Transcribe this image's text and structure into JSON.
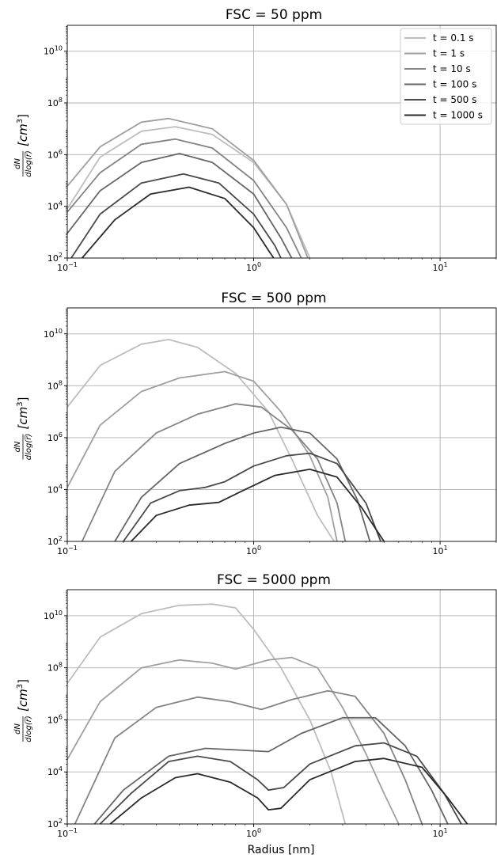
{
  "figure": {
    "xlabel": "Radius [nm]",
    "ylabel_fraction_num": "dN",
    "ylabel_fraction_den": "dlog(r̅)",
    "ylabel_unit": "[cm",
    "ylabel_unit_exp": "3",
    "ylabel_unit_close": "]"
  },
  "chart_data": [
    {
      "type": "line",
      "title": "FSC = 50 ppm",
      "xlabel": "",
      "ylabel": "dN/dlog(r) [cm3]",
      "x_scale": "log",
      "y_scale": "log",
      "xlim": [
        0.1,
        20
      ],
      "ylim": [
        100,
        100000000000
      ],
      "x_ticks": [
        {
          "base": "10",
          "exp": "−1",
          "value": 0.1
        },
        {
          "base": "10",
          "exp": "0",
          "value": 1
        },
        {
          "base": "10",
          "exp": "1",
          "value": 10
        }
      ],
      "y_ticks": [
        {
          "base": "10",
          "exp": "2",
          "value": 100
        },
        {
          "base": "10",
          "exp": "4",
          "value": 10000
        },
        {
          "base": "10",
          "exp": "6",
          "value": 1000000
        },
        {
          "base": "10",
          "exp": "8",
          "value": 100000000
        },
        {
          "base": "10",
          "exp": "10",
          "value": 10000000000
        }
      ],
      "grid": true,
      "legend_position": "top-right",
      "series": [
        {
          "name": "t = 0.1 s",
          "color": "#bdbdbd",
          "points": [
            [
              0.1,
              8000
            ],
            [
              0.15,
              800000
            ],
            [
              0.25,
              8000000
            ],
            [
              0.38,
              12000000
            ],
            [
              0.6,
              6000000
            ],
            [
              1.0,
              500000
            ],
            [
              1.5,
              12000
            ],
            [
              2.0,
              100
            ]
          ]
        },
        {
          "name": "t = 1 s",
          "color": "#a0a0a0",
          "points": [
            [
              0.1,
              60000
            ],
            [
              0.15,
              2000000
            ],
            [
              0.25,
              18000000
            ],
            [
              0.35,
              25000000
            ],
            [
              0.6,
              10000000
            ],
            [
              1.0,
              600000
            ],
            [
              1.5,
              12000
            ],
            [
              1.95,
              100
            ]
          ]
        },
        {
          "name": "t = 10 s",
          "color": "#848484",
          "points": [
            [
              0.1,
              6000
            ],
            [
              0.15,
              200000
            ],
            [
              0.25,
              2500000
            ],
            [
              0.38,
              4000000
            ],
            [
              0.6,
              1800000
            ],
            [
              1.0,
              100000
            ],
            [
              1.5,
              1500
            ],
            [
              1.8,
              100
            ]
          ]
        },
        {
          "name": "t = 100 s",
          "color": "#666666",
          "points": [
            [
              0.1,
              900
            ],
            [
              0.15,
              40000
            ],
            [
              0.25,
              500000
            ],
            [
              0.4,
              1100000
            ],
            [
              0.6,
              500000
            ],
            [
              1.0,
              30000
            ],
            [
              1.4,
              600
            ],
            [
              1.6,
              100
            ]
          ]
        },
        {
          "name": "t = 500 s",
          "color": "#494949",
          "points": [
            [
              0.105,
              100
            ],
            [
              0.15,
              5000
            ],
            [
              0.25,
              80000
            ],
            [
              0.42,
              180000
            ],
            [
              0.65,
              80000
            ],
            [
              1.0,
              5000
            ],
            [
              1.3,
              300
            ],
            [
              1.4,
              100
            ]
          ]
        },
        {
          "name": "t = 1000 s",
          "color": "#2a2a2a",
          "points": [
            [
              0.12,
              100
            ],
            [
              0.18,
              3000
            ],
            [
              0.28,
              30000
            ],
            [
              0.45,
              55000
            ],
            [
              0.7,
              20000
            ],
            [
              1.0,
              1500
            ],
            [
              1.2,
              200
            ],
            [
              1.28,
              100
            ]
          ]
        }
      ]
    },
    {
      "type": "line",
      "title": "FSC = 500 ppm",
      "xlabel": "",
      "ylabel": "dN/dlog(r) [cm3]",
      "x_scale": "log",
      "y_scale": "log",
      "xlim": [
        0.1,
        20
      ],
      "ylim": [
        100,
        100000000000
      ],
      "x_ticks": [
        {
          "base": "10",
          "exp": "−1",
          "value": 0.1
        },
        {
          "base": "10",
          "exp": "0",
          "value": 1
        },
        {
          "base": "10",
          "exp": "1",
          "value": 10
        }
      ],
      "y_ticks": [
        {
          "base": "10",
          "exp": "2",
          "value": 100
        },
        {
          "base": "10",
          "exp": "4",
          "value": 10000
        },
        {
          "base": "10",
          "exp": "6",
          "value": 1000000
        },
        {
          "base": "10",
          "exp": "8",
          "value": 100000000
        },
        {
          "base": "10",
          "exp": "10",
          "value": 10000000000
        }
      ],
      "grid": true,
      "legend_position": "none",
      "series": [
        {
          "name": "t = 0.1 s",
          "color": "#bdbdbd",
          "points": [
            [
              0.1,
              15000000
            ],
            [
              0.15,
              600000000
            ],
            [
              0.25,
              4000000000
            ],
            [
              0.35,
              6000000000
            ],
            [
              0.5,
              3000000000
            ],
            [
              0.8,
              300000000
            ],
            [
              1.2,
              10000000
            ],
            [
              1.6,
              150000
            ],
            [
              2.2,
              1000
            ],
            [
              2.7,
              100
            ]
          ]
        },
        {
          "name": "t = 1 s",
          "color": "#a0a0a0",
          "points": [
            [
              0.1,
              12000
            ],
            [
              0.15,
              3000000
            ],
            [
              0.25,
              60000000
            ],
            [
              0.4,
              200000000
            ],
            [
              0.7,
              350000000
            ],
            [
              1.0,
              150000000
            ],
            [
              1.4,
              10000000
            ],
            [
              2.0,
              200000
            ],
            [
              2.5,
              5000
            ],
            [
              2.8,
              100
            ]
          ]
        },
        {
          "name": "t = 10 s",
          "color": "#848484",
          "points": [
            [
              0.12,
              100
            ],
            [
              0.18,
              50000
            ],
            [
              0.3,
              1500000
            ],
            [
              0.5,
              8000000
            ],
            [
              0.8,
              20000000
            ],
            [
              1.1,
              15000000
            ],
            [
              1.6,
              2000000
            ],
            [
              2.2,
              150000
            ],
            [
              2.8,
              3000
            ],
            [
              3.1,
              100
            ]
          ]
        },
        {
          "name": "t = 100 s",
          "color": "#666666",
          "points": [
            [
              0.18,
              100
            ],
            [
              0.25,
              5000
            ],
            [
              0.4,
              100000
            ],
            [
              0.7,
              600000
            ],
            [
              1.0,
              1500000
            ],
            [
              1.4,
              2500000
            ],
            [
              2.0,
              1500000
            ],
            [
              2.8,
              150000
            ],
            [
              3.6,
              4000
            ],
            [
              4.2,
              100
            ]
          ]
        },
        {
          "name": "t = 500 s",
          "color": "#494949",
          "points": [
            [
              0.2,
              100
            ],
            [
              0.28,
              3000
            ],
            [
              0.4,
              9000
            ],
            [
              0.55,
              12000
            ],
            [
              0.7,
              20000
            ],
            [
              1.0,
              80000
            ],
            [
              1.5,
              200000
            ],
            [
              2.0,
              250000
            ],
            [
              2.8,
              100000
            ],
            [
              4.0,
              3000
            ],
            [
              4.8,
              100
            ]
          ]
        },
        {
          "name": "t = 1000 s",
          "color": "#2a2a2a",
          "points": [
            [
              0.22,
              100
            ],
            [
              0.3,
              1000
            ],
            [
              0.45,
              2500
            ],
            [
              0.65,
              3200
            ],
            [
              0.9,
              10000
            ],
            [
              1.3,
              35000
            ],
            [
              2.0,
              60000
            ],
            [
              2.8,
              30000
            ],
            [
              3.8,
              2000
            ],
            [
              5.0,
              100
            ]
          ]
        }
      ]
    },
    {
      "type": "line",
      "title": "FSC = 5000 ppm",
      "xlabel": "Radius [nm]",
      "ylabel": "dN/dlog(r) [cm3]",
      "x_scale": "log",
      "y_scale": "log",
      "xlim": [
        0.1,
        20
      ],
      "ylim": [
        100,
        100000000000
      ],
      "x_ticks": [
        {
          "base": "10",
          "exp": "−1",
          "value": 0.1
        },
        {
          "base": "10",
          "exp": "0",
          "value": 1
        },
        {
          "base": "10",
          "exp": "1",
          "value": 10
        }
      ],
      "y_ticks": [
        {
          "base": "10",
          "exp": "2",
          "value": 100
        },
        {
          "base": "10",
          "exp": "4",
          "value": 10000
        },
        {
          "base": "10",
          "exp": "6",
          "value": 1000000
        },
        {
          "base": "10",
          "exp": "8",
          "value": 100000000
        },
        {
          "base": "10",
          "exp": "10",
          "value": 10000000000
        }
      ],
      "grid": true,
      "legend_position": "none",
      "series": [
        {
          "name": "t = 0.1 s",
          "color": "#bdbdbd",
          "points": [
            [
              0.1,
              25000000
            ],
            [
              0.15,
              1500000000
            ],
            [
              0.25,
              12000000000
            ],
            [
              0.4,
              25000000000
            ],
            [
              0.6,
              28000000000
            ],
            [
              0.8,
              20000000000
            ],
            [
              1.0,
              3000000000
            ],
            [
              1.4,
              100000000
            ],
            [
              2.0,
              1000000
            ],
            [
              2.6,
              10000
            ],
            [
              3.1,
              100
            ]
          ]
        },
        {
          "name": "t = 1 s",
          "color": "#a0a0a0",
          "points": [
            [
              0.1,
              30000
            ],
            [
              0.15,
              5000000
            ],
            [
              0.25,
              100000000
            ],
            [
              0.4,
              200000000
            ],
            [
              0.6,
              150000000
            ],
            [
              0.8,
              90000000
            ],
            [
              1.2,
              200000000
            ],
            [
              1.6,
              250000000
            ],
            [
              2.2,
              100000000
            ],
            [
              3.0,
              3000000
            ],
            [
              4.0,
              50000
            ],
            [
              5.0,
              1500
            ],
            [
              6.0,
              100
            ]
          ]
        },
        {
          "name": "t = 10 s",
          "color": "#848484",
          "points": [
            [
              0.11,
              100
            ],
            [
              0.18,
              200000
            ],
            [
              0.3,
              3000000
            ],
            [
              0.5,
              7500000
            ],
            [
              0.75,
              5000000
            ],
            [
              1.1,
              2500000
            ],
            [
              1.6,
              6000000
            ],
            [
              2.5,
              13000000
            ],
            [
              3.5,
              8000000
            ],
            [
              5.0,
              300000
            ],
            [
              6.5,
              5000
            ],
            [
              8.0,
              100
            ]
          ]
        },
        {
          "name": "t = 100 s",
          "color": "#666666",
          "points": [
            [
              0.14,
              100
            ],
            [
              0.2,
              2000
            ],
            [
              0.35,
              40000
            ],
            [
              0.55,
              80000
            ],
            [
              0.8,
              70000
            ],
            [
              1.2,
              60000
            ],
            [
              1.8,
              300000
            ],
            [
              3.0,
              1200000
            ],
            [
              4.5,
              1200000
            ],
            [
              6.5,
              100000
            ],
            [
              9.0,
              2000
            ],
            [
              11.0,
              100
            ]
          ]
        },
        {
          "name": "t = 500 s",
          "color": "#494949",
          "points": [
            [
              0.15,
              100
            ],
            [
              0.22,
              1500
            ],
            [
              0.35,
              25000
            ],
            [
              0.5,
              40000
            ],
            [
              0.75,
              25000
            ],
            [
              1.05,
              5000
            ],
            [
              1.2,
              2000
            ],
            [
              1.45,
              2500
            ],
            [
              2.0,
              20000
            ],
            [
              3.5,
              100000
            ],
            [
              5.0,
              130000
            ],
            [
              7.5,
              40000
            ],
            [
              10.5,
              1500
            ],
            [
              13.0,
              100
            ]
          ]
        },
        {
          "name": "t = 1000 s",
          "color": "#2a2a2a",
          "points": [
            [
              0.17,
              100
            ],
            [
              0.25,
              1000
            ],
            [
              0.38,
              6000
            ],
            [
              0.5,
              8500
            ],
            [
              0.75,
              4000
            ],
            [
              1.05,
              1000
            ],
            [
              1.2,
              350
            ],
            [
              1.4,
              400
            ],
            [
              2.0,
              5000
            ],
            [
              3.5,
              25000
            ],
            [
              5.0,
              33000
            ],
            [
              8.0,
              15000
            ],
            [
              11.0,
              1000
            ],
            [
              14.0,
              100
            ]
          ]
        }
      ]
    }
  ]
}
